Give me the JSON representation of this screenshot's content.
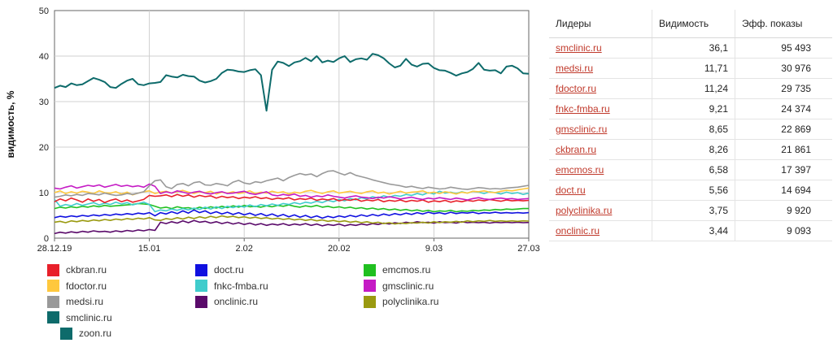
{
  "chart_data": {
    "type": "line",
    "title": "",
    "xlabel": "",
    "ylabel": "видимость, %",
    "ylim": [
      0,
      50
    ],
    "yticks": [
      "0",
      "10",
      "20",
      "30",
      "40",
      "50"
    ],
    "xticks": [
      "28.12.19",
      "15.01",
      "2.02",
      "20.02",
      "9.03",
      "27.03"
    ],
    "grid": true,
    "legend_position": "bottom",
    "series": [
      {
        "name": "smclinic.ru",
        "color": "#0e6b6b",
        "values": [
          33,
          33.5,
          33.2,
          34,
          33.6,
          33.8,
          34.5,
          35.2,
          34.8,
          34.3,
          33.2,
          33,
          33.9,
          34.6,
          35,
          33.8,
          33.6,
          34,
          34.1,
          34.3,
          35.8,
          35.5,
          35.3,
          35.9,
          35.6,
          35.5,
          34.6,
          34.2,
          34.5,
          35,
          36.3,
          37,
          36.9,
          36.6,
          36.5,
          36.9,
          37.1,
          35.8,
          28,
          37,
          38.8,
          38.5,
          37.8,
          38.6,
          38.9,
          39.6,
          38.9,
          40,
          38.6,
          39,
          38.7,
          39.5,
          40,
          38.7,
          39.3,
          39.5,
          39.2,
          40.5,
          40.2,
          39.5,
          38.4,
          37.5,
          37.9,
          39.4,
          38.1,
          37.7,
          38.3,
          38.4,
          37.4,
          36.9,
          36.8,
          36.3,
          35.7,
          36.2,
          36.5,
          37.2,
          38.5,
          37,
          36.8,
          36.9,
          36.2,
          37.7,
          37.9,
          37.3,
          36.2,
          36.1
        ]
      },
      {
        "name": "zoon.ru",
        "color": "#0e6b6b",
        "values": []
      },
      {
        "name": "medsi.ru",
        "color": "#999999",
        "values": [
          9,
          9.2,
          9.5,
          9.3,
          9.6,
          9.4,
          9.8,
          9.7,
          9.5,
          9.9,
          9.6,
          9.4,
          9.5,
          9.8,
          9.6,
          9.9,
          10.2,
          11.5,
          12.6,
          12.8,
          11.3,
          10.9,
          11.8,
          12,
          11.5,
          12.2,
          12.4,
          11.7,
          11.6,
          12,
          11.8,
          11.5,
          12.3,
          12.7,
          12.1,
          11.9,
          12.4,
          12.2,
          12.6,
          12.9,
          13.2,
          12.6,
          13.3,
          13.8,
          14.2,
          13.9,
          14.1,
          13.5,
          14.2,
          14.7,
          14.8,
          14.3,
          13.9,
          14.4,
          13.8,
          13.5,
          13.2,
          12.8,
          12.5,
          12.2,
          11.9,
          11.7,
          11.5,
          11.2,
          11.4,
          11.1,
          10.9,
          11.2,
          11,
          10.8,
          10.9,
          11.2,
          11,
          10.8,
          10.7,
          10.9,
          11.1,
          11,
          10.8,
          10.9,
          10.8,
          11,
          11.1,
          11.2,
          11.4,
          11.6
        ]
      },
      {
        "name": "gmsclinic.ru",
        "color": "#c51bc5",
        "values": [
          11,
          10.8,
          11.2,
          11.5,
          11,
          11.3,
          11.6,
          11.4,
          11.7,
          11.2,
          11.5,
          11.8,
          11.4,
          11.6,
          11.3,
          11.5,
          11.2,
          11.9,
          11.4,
          9.8,
          10.2,
          9.9,
          10.4,
          10.1,
          9.8,
          10.1,
          10.3,
          9.9,
          9.7,
          10,
          10.2,
          9.8,
          9.9,
          10.1,
          10.3,
          9.8,
          9.6,
          9.9,
          10.2,
          9.5,
          9.3,
          9.6,
          9.4,
          9.7,
          9.2,
          9.4,
          9,
          9.3,
          9.1,
          9.5,
          9.2,
          9,
          8.8,
          9.1,
          9.3,
          9,
          8.9,
          8.7,
          9,
          8.8,
          9.1,
          8.9,
          8.6,
          8.8,
          9,
          8.7,
          8.5,
          8.8,
          8.6,
          8.9,
          8.7,
          8.5,
          8.8,
          8.6,
          8.4,
          8.7,
          8.9,
          8.6,
          8.5,
          8.7,
          8.8,
          8.6,
          8.7,
          8.5,
          8.6,
          8.7
        ]
      },
      {
        "name": "fdoctor.ru",
        "color": "#ffc83d",
        "values": [
          10,
          10.4,
          9.8,
          10.2,
          9.9,
          10.3,
          10.1,
          9.8,
          10.4,
          10,
          9.9,
          10.2,
          9.7,
          10.1,
          9.5,
          9.9,
          10.2,
          10.4,
          9.8,
          10.1,
          10.3,
          9.9,
          10.2,
          10.5,
          10.1,
          9.8,
          10.2,
          10,
          10.3,
          9.7,
          10.1,
          9.9,
          10.2,
          9.8,
          10,
          10.4,
          9.8,
          10.1,
          9.9,
          10.3,
          10,
          10.2,
          9.7,
          10.1,
          9.9,
          10.3,
          10.5,
          10.1,
          9.8,
          10.2,
          10.4,
          9.9,
          10.1,
          10.3,
          10,
          9.8,
          10.2,
          10.4,
          9.9,
          10.1,
          9.7,
          10,
          10.3,
          9.9,
          10.1,
          10.2,
          10.4,
          9.9,
          10.1,
          9.8,
          10.2,
          10,
          9.7,
          10.1,
          9.9,
          10.3,
          10.2,
          10.4,
          10.1,
          10,
          10.3,
          10.5,
          10.4,
          10.6,
          10.8,
          11
        ]
      },
      {
        "name": "ckbran.ru",
        "color": "#e8202a",
        "values": [
          8,
          8.6,
          8.2,
          8.8,
          8.4,
          7.9,
          8.6,
          8.1,
          8.5,
          7.8,
          8.3,
          8.6,
          8,
          8.4,
          7.9,
          8.2,
          8.5,
          9.4,
          9.2,
          9.3,
          9.5,
          9.1,
          9.6,
          9.2,
          9.5,
          9,
          9.4,
          9.1,
          9.3,
          8.8,
          9.2,
          8.9,
          9.1,
          8.7,
          9,
          8.8,
          9.1,
          8.7,
          8.9,
          8.5,
          8.8,
          8.6,
          8.9,
          8.4,
          8.7,
          8.5,
          8.8,
          8.3,
          8.6,
          8.4,
          8.7,
          8.2,
          8.5,
          8.3,
          8.6,
          8.1,
          8.4,
          8.2,
          8.5,
          8,
          8.3,
          8.1,
          8.4,
          8,
          8.3,
          8.1,
          8.4,
          7.9,
          8.2,
          8,
          8.3,
          7.9,
          8.2,
          8,
          8.3,
          8.1,
          8.4,
          8.2,
          8.5,
          8.3,
          8.1,
          8.4,
          8.2,
          8.3,
          8.2,
          8.3
        ]
      },
      {
        "name": "fnkc-fmba.ru",
        "color": "#40cccc",
        "values": [
          8.5,
          7,
          7.4,
          7.1,
          7.6,
          7.2,
          7.5,
          7.8,
          7.3,
          7.7,
          7.4,
          7.9,
          7.5,
          7.8,
          7.3,
          7.6,
          7.9,
          7.4,
          5.8,
          6.2,
          6,
          6.4,
          6.1,
          6.5,
          6.2,
          6.6,
          6.3,
          6.8,
          6.4,
          6.9,
          6.5,
          7,
          6.7,
          7.1,
          6.8,
          7.3,
          6.9,
          7.4,
          7.1,
          7.5,
          7.2,
          7.6,
          7.4,
          7.8,
          7.5,
          7.9,
          7.7,
          8.1,
          7.8,
          8.3,
          8,
          8.5,
          8.2,
          8.7,
          8.4,
          8.9,
          8.6,
          9.1,
          8.8,
          9.3,
          9,
          9.4,
          9.2,
          9.6,
          9.4,
          9.8,
          9.5,
          10,
          9.7,
          10.3,
          9.9,
          10.1,
          9.8,
          10.2,
          9.9,
          10.3,
          10.1,
          9.8,
          10.2,
          10,
          9.7,
          10.1,
          9.8,
          10,
          9.6,
          9.9
        ]
      },
      {
        "name": "emcmos.ru",
        "color": "#20c020",
        "values": [
          6.5,
          6.8,
          6.6,
          6.9,
          6.7,
          7,
          6.8,
          7.1,
          6.9,
          7.2,
          7,
          7.1,
          7.2,
          7.3,
          7.4,
          7.6,
          7.5,
          7.4,
          7,
          6.6,
          6.8,
          6.5,
          6.9,
          6.6,
          6.7,
          6.4,
          6.8,
          6.5,
          6.9,
          6.6,
          7,
          6.7,
          7.1,
          6.8,
          7.2,
          6.9,
          7,
          6.8,
          7.1,
          6.9,
          7.2,
          7,
          7.3,
          7,
          6.8,
          7.1,
          6.9,
          7.2,
          6.8,
          7,
          6.7,
          6.9,
          6.6,
          6.8,
          6.5,
          6.7,
          6.4,
          6.6,
          6.3,
          6.5,
          6.2,
          6.4,
          6.1,
          6.3,
          6,
          6.2,
          5.9,
          6.1,
          5.8,
          6,
          5.9,
          6.1,
          5.8,
          6,
          5.9,
          6.1,
          6,
          6.2,
          6.1,
          6.3,
          6.2,
          6.4,
          6.3,
          6.4,
          6.5,
          6.5
        ]
      },
      {
        "name": "doct.ru",
        "color": "#1010e0",
        "values": [
          4.5,
          4.8,
          4.6,
          4.9,
          4.7,
          5,
          4.8,
          5.1,
          4.9,
          5.2,
          5,
          5.3,
          5.1,
          5.4,
          5.2,
          5.5,
          5.3,
          5.6,
          4.9,
          5.6,
          5.3,
          5.8,
          5.4,
          6,
          5.5,
          6.2,
          5.6,
          6,
          5.4,
          5.8,
          5.3,
          5.7,
          5.2,
          5.6,
          5.1,
          5.5,
          5,
          5.4,
          4.9,
          5.3,
          4.8,
          5.2,
          4.7,
          5.1,
          4.6,
          5,
          4.5,
          4.9,
          4.4,
          4.8,
          4.5,
          4.9,
          4.6,
          5,
          4.7,
          5.1,
          4.8,
          5.2,
          4.9,
          5.3,
          5,
          5.4,
          5.1,
          5.5,
          5.2,
          5.6,
          5.3,
          5.7,
          5.4,
          5.6,
          5.3,
          5.7,
          5.4,
          5.6,
          5.5,
          5.7,
          5.4,
          5.6,
          5.5,
          5.7,
          5.5,
          5.6,
          5.5,
          5.6,
          5.5,
          5.6
        ]
      },
      {
        "name": "polyclinika.ru",
        "color": "#9a9a10",
        "values": [
          3.5,
          3.7,
          3.4,
          3.8,
          3.6,
          3.9,
          3.7,
          4,
          3.8,
          4.1,
          3.9,
          4.2,
          4,
          4.3,
          4.1,
          4.4,
          4.2,
          4.5,
          4,
          3.9,
          4.3,
          4.1,
          4.5,
          4.2,
          4.6,
          4.3,
          4.7,
          4.4,
          4.8,
          4.5,
          4.9,
          4.6,
          4.8,
          4.5,
          4.7,
          4.4,
          4.6,
          4.3,
          4.5,
          4.2,
          4.4,
          4.1,
          4.3,
          4,
          4.2,
          3.9,
          4.1,
          3.8,
          4,
          3.7,
          3.9,
          3.6,
          3.8,
          3.5,
          3.7,
          3.4,
          3.6,
          3.3,
          3.5,
          3.2,
          3.4,
          3.1,
          3.3,
          3.2,
          3.4,
          3.3,
          3.5,
          3.3,
          3.6,
          3.4,
          3.6,
          3.5,
          3.7,
          3.5,
          3.8,
          3.6,
          3.8,
          3.7,
          3.9,
          3.7,
          3.8,
          3.7,
          3.8,
          3.7,
          3.8,
          3.75
        ]
      },
      {
        "name": "onclinic.ru",
        "color": "#5a0a6a",
        "values": [
          1,
          1.3,
          1.1,
          1.4,
          1.2,
          1.5,
          1.3,
          1.6,
          1.4,
          1.5,
          1.3,
          1.6,
          1.4,
          1.7,
          1.5,
          1.8,
          1.6,
          1.9,
          1.7,
          3.5,
          3.2,
          3.6,
          3.3,
          3.8,
          3.4,
          3.9,
          3.5,
          3.7,
          3.3,
          3.6,
          3.2,
          3.5,
          3.1,
          3.4,
          3,
          3.3,
          2.9,
          3.2,
          2.8,
          3.1,
          2.9,
          3.2,
          2.8,
          3.1,
          2.9,
          3.2,
          2.8,
          3.1,
          2.7,
          3,
          2.8,
          3.1,
          2.7,
          3,
          2.8,
          3.1,
          2.9,
          3.2,
          3,
          3.3,
          3.1,
          3.4,
          3.2,
          3.5,
          3.3,
          3.6,
          3.4,
          3.5,
          3.3,
          3.6,
          3.4,
          3.5,
          3.3,
          3.6,
          3.4,
          3.5,
          3.4,
          3.5,
          3.3,
          3.5,
          3.4,
          3.5,
          3.4,
          3.5,
          3.4,
          3.44
        ]
      }
    ]
  },
  "legend": {
    "items": [
      {
        "name": "ckbran.ru",
        "color": "#e8202a"
      },
      {
        "name": "fdoctor.ru",
        "color": "#ffc83d"
      },
      {
        "name": "medsi.ru",
        "color": "#999999"
      },
      {
        "name": "smclinic.ru",
        "color": "#0e6b6b"
      },
      {
        "name": "zoon.ru",
        "color": "#0e6b6b"
      },
      {
        "name": "doct.ru",
        "color": "#1010e0"
      },
      {
        "name": "fnkc-fmba.ru",
        "color": "#40cccc"
      },
      {
        "name": "onclinic.ru",
        "color": "#5a0a6a"
      },
      {
        "name": "emcmos.ru",
        "color": "#20c020"
      },
      {
        "name": "gmsclinic.ru",
        "color": "#c51bc5"
      },
      {
        "name": "polyclinika.ru",
        "color": "#9a9a10"
      }
    ]
  },
  "table": {
    "headers": {
      "site": "Лидеры",
      "visibility": "Видимость",
      "impressions": "Эфф. показы"
    },
    "rows": [
      {
        "site": "smclinic.ru",
        "visibility": "36,1",
        "impressions": "95 493"
      },
      {
        "site": "medsi.ru",
        "visibility": "11,71",
        "impressions": "30 976"
      },
      {
        "site": "fdoctor.ru",
        "visibility": "11,24",
        "impressions": "29 735"
      },
      {
        "site": "fnkc-fmba.ru",
        "visibility": "9,21",
        "impressions": "24 374"
      },
      {
        "site": "gmsclinic.ru",
        "visibility": "8,65",
        "impressions": "22 869"
      },
      {
        "site": "ckbran.ru",
        "visibility": "8,26",
        "impressions": "21 861"
      },
      {
        "site": "emcmos.ru",
        "visibility": "6,58",
        "impressions": "17 397"
      },
      {
        "site": "doct.ru",
        "visibility": "5,56",
        "impressions": "14 694"
      },
      {
        "site": "polyclinika.ru",
        "visibility": "3,75",
        "impressions": "9 920"
      },
      {
        "site": "onclinic.ru",
        "visibility": "3,44",
        "impressions": "9 093"
      }
    ]
  }
}
